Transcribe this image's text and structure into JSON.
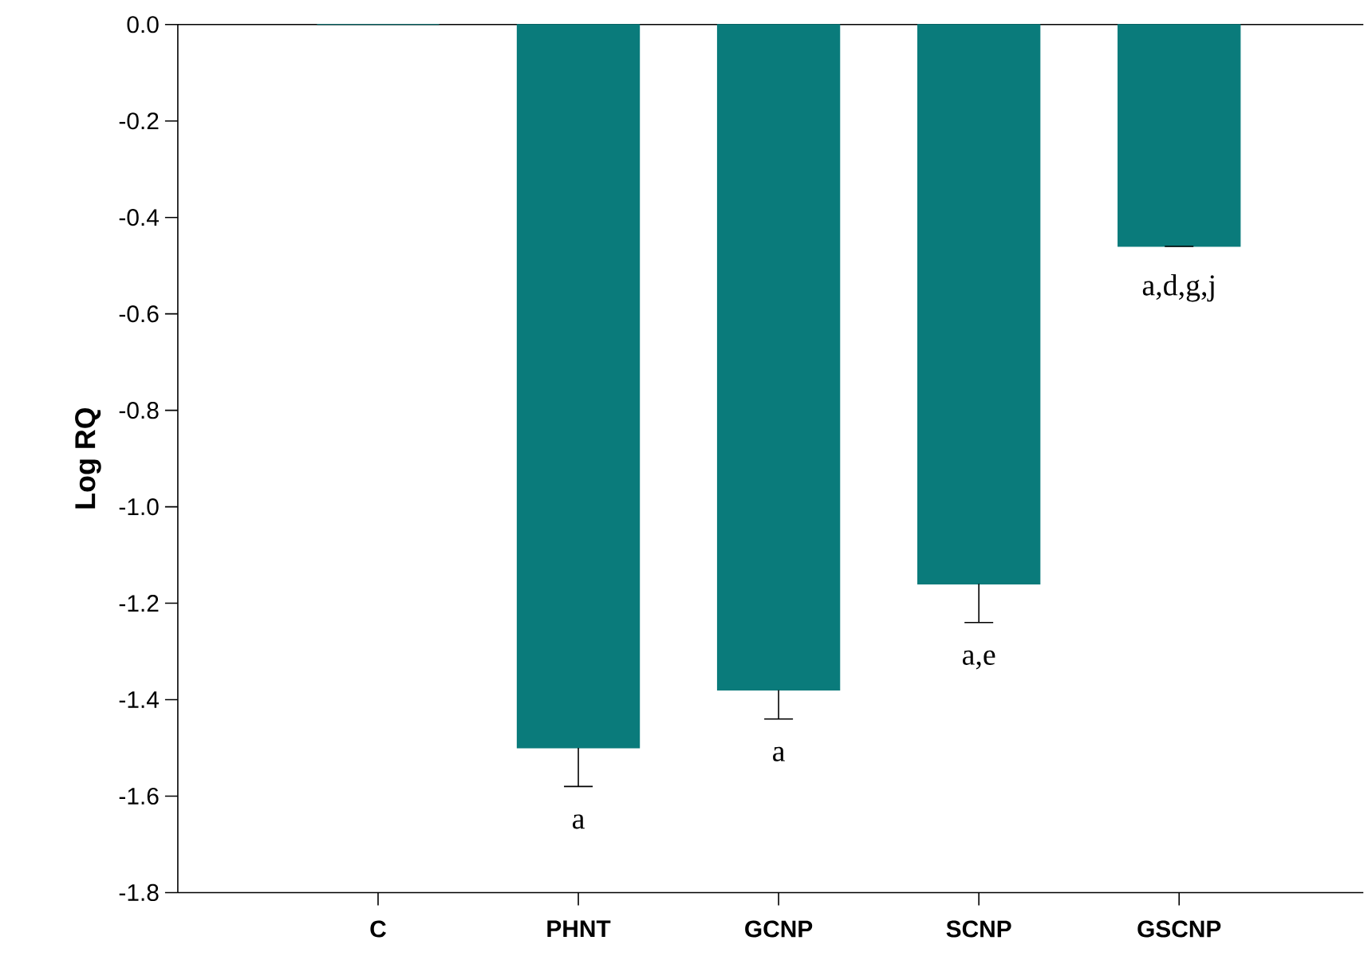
{
  "chart_data": {
    "type": "bar",
    "ylabel": "Log RQ",
    "categories": [
      "C",
      "PHNT",
      "GCNP",
      "SCNP",
      "GSCNP"
    ],
    "values": [
      0,
      -1.5,
      -1.38,
      -1.16,
      -0.46
    ],
    "errors": [
      null,
      [
        -1.58,
        -1.5
      ],
      [
        -1.44,
        -1.38
      ],
      [
        -1.24,
        -1.16
      ],
      [
        -0.46,
        -0.46
      ]
    ],
    "color": "#0a7b7b",
    "ylim": [
      -1.8,
      0
    ],
    "yticks": [
      {
        "value": 0,
        "label": "0.0"
      },
      -0.2,
      -0.4,
      -0.6,
      -0.8,
      {
        "value": -1,
        "label": "-1.0"
      },
      -1.2,
      -1.4,
      -1.6,
      -1.8
    ],
    "annotations": [
      "a",
      "a",
      "a,e",
      "a,d,g,j"
    ]
  }
}
